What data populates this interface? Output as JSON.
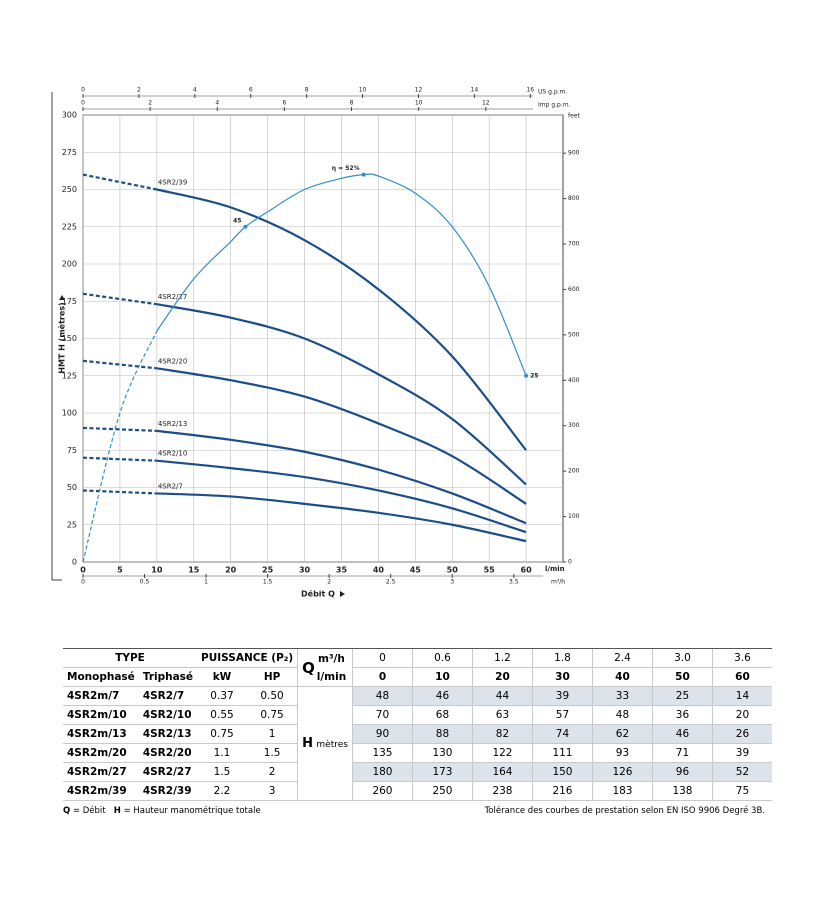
{
  "chart_data": {
    "type": "line",
    "ylabel": "HMT H (mètres)",
    "xlabel": "Débit Q",
    "xunit": "l/min",
    "xlim": [
      0,
      65
    ],
    "xticks": [
      0,
      5,
      10,
      15,
      20,
      25,
      30,
      35,
      40,
      45,
      50,
      55,
      60
    ],
    "ylim": [
      0,
      300
    ],
    "yticks": [
      0,
      25,
      50,
      75,
      100,
      125,
      150,
      175,
      200,
      225,
      250,
      275,
      300
    ],
    "y2label": "feet",
    "y2lim": [
      0,
      984
    ],
    "y2ticks": [
      0,
      100,
      200,
      300,
      400,
      500,
      600,
      700,
      800,
      900
    ],
    "y3lim": [
      0,
      60
    ],
    "top_axes": [
      {
        "label": "US g.p.m.",
        "lim": [
          0,
          17.17
        ],
        "ticks": [
          0,
          2,
          4,
          6,
          8,
          10,
          12,
          14,
          16
        ]
      },
      {
        "label": "Imp g.p.m.",
        "lim": [
          0,
          14.3
        ],
        "ticks": [
          0,
          2,
          4,
          6,
          8,
          10,
          12
        ]
      }
    ],
    "bottom_axis2": {
      "label": "m³/h",
      "lim": [
        0,
        3.9
      ],
      "ticks": [
        0,
        0.5,
        1,
        1.5,
        2,
        2.5,
        3,
        3.5
      ]
    },
    "grid": true,
    "dashed_below_x": 10,
    "x": [
      0,
      10,
      20,
      30,
      40,
      50,
      60
    ],
    "series": [
      {
        "name": "4SR2/7",
        "color": "#1b4e88",
        "values": [
          48,
          46,
          44,
          39,
          33,
          25,
          14
        ]
      },
      {
        "name": "4SR2/10",
        "color": "#1b4e88",
        "values": [
          70,
          68,
          63,
          57,
          48,
          36,
          20
        ]
      },
      {
        "name": "4SR2/13",
        "color": "#1b4e88",
        "values": [
          90,
          88,
          82,
          74,
          62,
          46,
          26
        ]
      },
      {
        "name": "4SR2/20",
        "color": "#1b4e88",
        "values": [
          135,
          130,
          122,
          111,
          93,
          71,
          39
        ]
      },
      {
        "name": "4SR2/27",
        "color": "#1b4e88",
        "values": [
          180,
          173,
          164,
          150,
          126,
          96,
          52
        ]
      },
      {
        "name": "4SR2/39",
        "color": "#1b4e88",
        "values": [
          260,
          250,
          238,
          216,
          183,
          138,
          75
        ]
      }
    ],
    "efficiency": {
      "color": "#2f8fcb",
      "axis": "y3",
      "x": [
        0,
        5,
        10,
        15,
        20,
        22,
        25,
        30,
        35,
        38,
        40,
        45,
        50,
        55,
        60
      ],
      "values": [
        0,
        20,
        31,
        38,
        43,
        45,
        47,
        50,
        51.5,
        52,
        51.8,
        49.5,
        45,
        37,
        25
      ],
      "value_labels": [
        null,
        null,
        null,
        null,
        null,
        "45",
        null,
        null,
        null,
        "η = 52%",
        null,
        null,
        null,
        null,
        "25"
      ]
    }
  },
  "table": {
    "type": "TYPE",
    "power": "PUISSANCE (P₂)",
    "mono": "Monophasé",
    "tri": "Triphasé",
    "kw": "kW",
    "hp": "HP",
    "q": "Q",
    "q_unit1": "m³/h",
    "q_unit2": "l/min",
    "h": "H",
    "h_unit": "mètres",
    "flow_m3h": [
      "0",
      "0.6",
      "1.2",
      "1.8",
      "2.4",
      "3.0",
      "3.6"
    ],
    "flow_lmin": [
      0,
      10,
      20,
      30,
      40,
      50,
      60
    ],
    "rows": [
      {
        "mono": "4SR2m/7",
        "tri": "4SR2/7",
        "kw": "0.37",
        "hp": "0.50",
        "h": [
          48,
          46,
          44,
          39,
          33,
          25,
          14
        ]
      },
      {
        "mono": "4SR2m/10",
        "tri": "4SR2/10",
        "kw": "0.55",
        "hp": "0.75",
        "h": [
          70,
          68,
          63,
          57,
          48,
          36,
          20
        ]
      },
      {
        "mono": "4SR2m/13",
        "tri": "4SR2/13",
        "kw": "0.75",
        "hp": "1",
        "h": [
          90,
          88,
          82,
          74,
          62,
          46,
          26
        ]
      },
      {
        "mono": "4SR2m/20",
        "tri": "4SR2/20",
        "kw": "1.1",
        "hp": "1.5",
        "h": [
          135,
          130,
          122,
          111,
          93,
          71,
          39
        ]
      },
      {
        "mono": "4SR2m/27",
        "tri": "4SR2/27",
        "kw": "1.5",
        "hp": "2",
        "h": [
          180,
          173,
          164,
          150,
          126,
          96,
          52
        ]
      },
      {
        "mono": "4SR2m/39",
        "tri": "4SR2/39",
        "kw": "2.2",
        "hp": "3",
        "h": [
          260,
          250,
          238,
          216,
          183,
          138,
          75
        ]
      }
    ]
  },
  "footnote": {
    "q": "Q",
    "q_text": "= Débit",
    "h": "H",
    "h_text": "= Hauteur manométrique totale",
    "tolerance": "Tolérance des courbes de prestation selon EN ISO 9906 Degré 3B."
  }
}
